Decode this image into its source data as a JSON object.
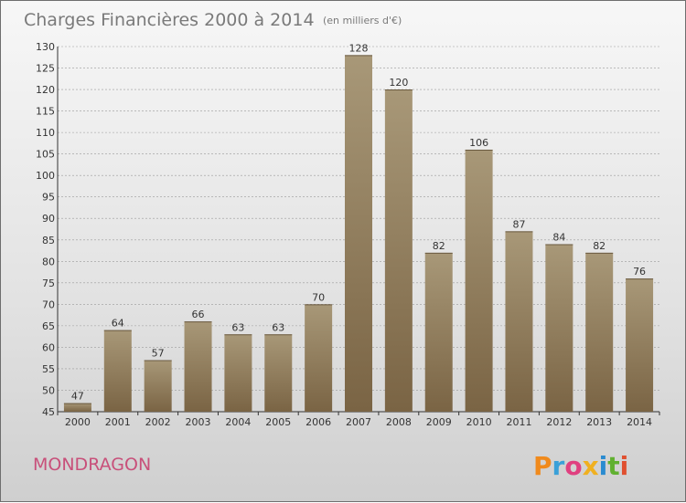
{
  "chart_data": {
    "type": "bar",
    "title": "Charges Financières 2000 à 2014",
    "subtitle": "(en milliers d'€)",
    "categories": [
      "2000",
      "2001",
      "2002",
      "2003",
      "2004",
      "2005",
      "2006",
      "2007",
      "2008",
      "2009",
      "2010",
      "2011",
      "2012",
      "2013",
      "2014"
    ],
    "values": [
      47,
      64,
      57,
      66,
      63,
      63,
      70,
      128,
      120,
      82,
      106,
      87,
      84,
      82,
      76
    ],
    "ylim": [
      45,
      130
    ],
    "yticks": [
      45,
      50,
      55,
      60,
      65,
      70,
      75,
      80,
      85,
      90,
      95,
      100,
      105,
      110,
      115,
      120,
      125,
      130
    ],
    "grid": true,
    "bar_color_top": "#a89878",
    "bar_color_bottom": "#7a6444"
  },
  "footer": {
    "place_name": "MONDRAGON",
    "logo_text": "Proxiti",
    "logo_colors": [
      "#f08a1c",
      "#3aa0d8",
      "#e04080",
      "#f0b020",
      "#2a8bd0",
      "#60b030",
      "#e05030"
    ]
  }
}
